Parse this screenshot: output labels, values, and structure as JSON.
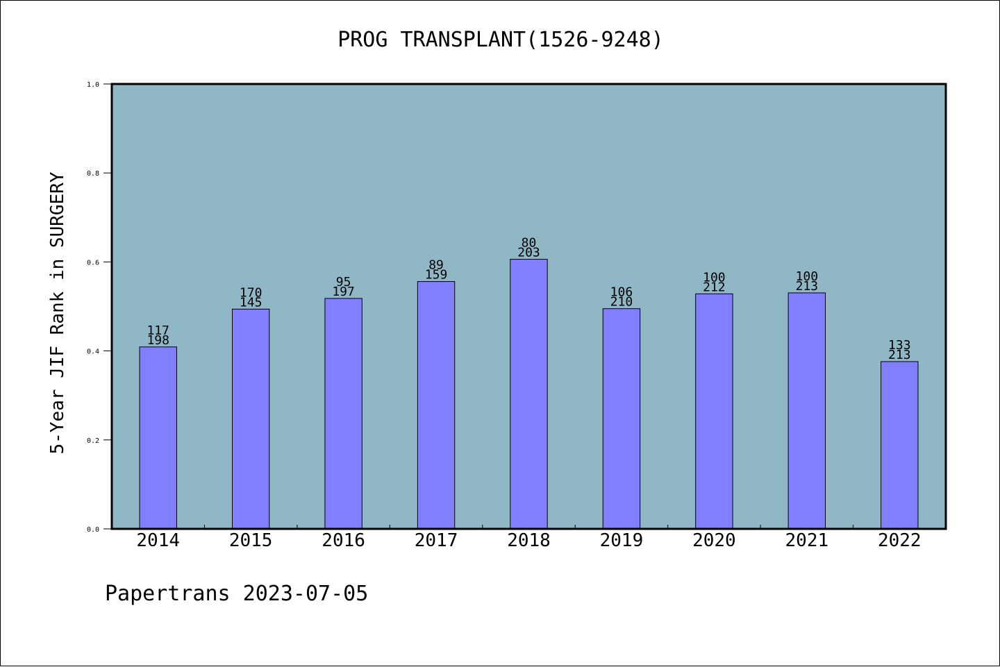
{
  "colors": {
    "plot_background": "#8fb7c6",
    "bar_fill": "#8080ff",
    "bar_stroke": "#000000"
  },
  "footer": "Papertrans 2023-07-05",
  "chart_data": {
    "type": "bar",
    "title": "PROG TRANSPLANT(1526-9248)",
    "xlabel": "",
    "ylabel": "5-Year JIF Rank in SURGERY",
    "ylim": [
      0,
      1.0
    ],
    "yticks": [
      "0.0",
      "0.2",
      "0.4",
      "0.6",
      "0.8",
      "1.0"
    ],
    "grid": false,
    "categories": [
      "2014",
      "2015",
      "2016",
      "2017",
      "2018",
      "2019",
      "2020",
      "2021",
      "2022"
    ],
    "values": [
      0.409,
      0.494,
      0.518,
      0.556,
      0.606,
      0.495,
      0.5283,
      0.5305,
      0.376
    ],
    "rank": [
      "117",
      "170",
      "95",
      "89",
      "80",
      "106",
      "100",
      "100",
      "133"
    ],
    "total": [
      "198",
      "145",
      "197",
      "159",
      "203",
      "210",
      "212",
      "213",
      "213"
    ]
  }
}
